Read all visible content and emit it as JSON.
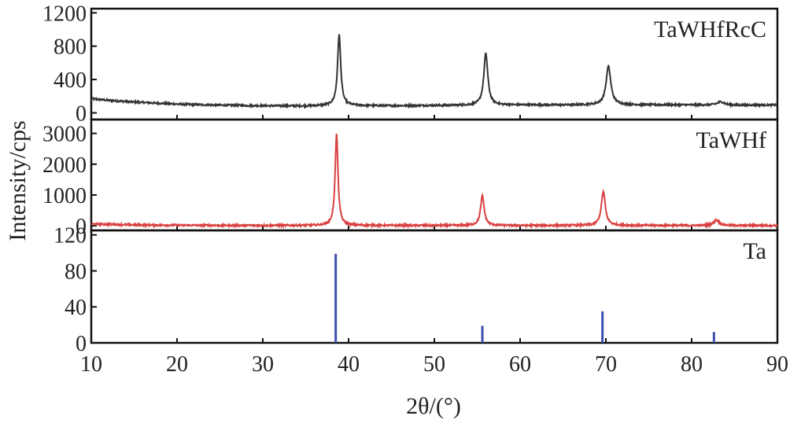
{
  "chart_data": [
    {
      "type": "line",
      "panel": "top",
      "label": "TaWHfRcC",
      "color": "#333333",
      "ylim": [
        -80,
        1250
      ],
      "yticks": [
        0,
        400,
        800,
        1200
      ],
      "xlim": [
        10,
        90
      ],
      "baseline": [
        [
          10,
          170
        ],
        [
          12,
          150
        ],
        [
          15,
          130
        ],
        [
          20,
          105
        ],
        [
          25,
          92
        ],
        [
          30,
          85
        ],
        [
          35,
          82
        ],
        [
          38,
          90
        ],
        [
          40,
          88
        ],
        [
          45,
          85
        ],
        [
          50,
          88
        ],
        [
          55,
          92
        ],
        [
          60,
          95
        ],
        [
          65,
          95
        ],
        [
          70,
          98
        ],
        [
          75,
          96
        ],
        [
          80,
          95
        ],
        [
          85,
          92
        ],
        [
          90,
          95
        ]
      ],
      "peaks": [
        {
          "x": 38.9,
          "height": 850,
          "width": 0.22
        },
        {
          "x": 56.0,
          "height": 620,
          "width": 0.28
        },
        {
          "x": 70.3,
          "height": 460,
          "width": 0.33
        },
        {
          "x": 83.4,
          "height": 40,
          "width": 0.5
        }
      ]
    },
    {
      "type": "line",
      "panel": "middle",
      "label": "TaWHf",
      "color": "#d94040",
      "ylim": [
        -150,
        3450
      ],
      "yticks": [
        0,
        1000,
        2000,
        3000
      ],
      "xlim": [
        10,
        90
      ],
      "baseline": [
        [
          10,
          60
        ],
        [
          15,
          30
        ],
        [
          20,
          18
        ],
        [
          30,
          10
        ],
        [
          40,
          10
        ],
        [
          50,
          10
        ],
        [
          60,
          10
        ],
        [
          70,
          10
        ],
        [
          80,
          10
        ],
        [
          90,
          10
        ]
      ],
      "peaks": [
        {
          "x": 38.6,
          "height": 2960,
          "width": 0.2
        },
        {
          "x": 55.6,
          "height": 960,
          "width": 0.25
        },
        {
          "x": 69.7,
          "height": 1100,
          "width": 0.28
        },
        {
          "x": 82.9,
          "height": 180,
          "width": 0.35
        }
      ]
    },
    {
      "type": "bar",
      "panel": "bottom",
      "label": "Ta",
      "color": "#3f4faf",
      "ylim": [
        0,
        125
      ],
      "yticks": [
        0,
        40,
        80,
        120
      ],
      "xlim": [
        10,
        90
      ],
      "x": [
        38.5,
        55.6,
        69.6,
        82.6
      ],
      "values": [
        99,
        19,
        35,
        12
      ]
    }
  ],
  "xticks": [
    "10",
    "20",
    "30",
    "40",
    "50",
    "60",
    "70",
    "80",
    "90"
  ],
  "xlabel": "2θ/(°)",
  "ylabel": "Intensity/cps"
}
